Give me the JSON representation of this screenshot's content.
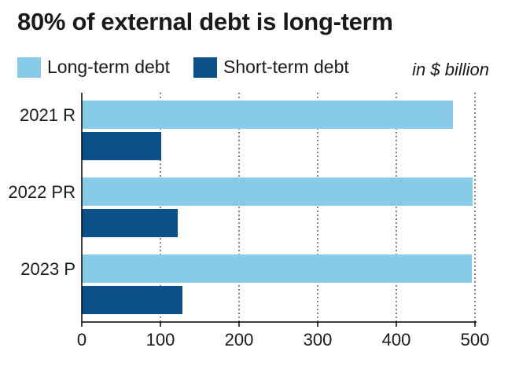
{
  "title": "80% of external debt is long-term",
  "unit_note": "in $ billion",
  "colors": {
    "long_term": "#87CBE8",
    "short_term": "#0B5088",
    "grid": "#333333",
    "axis": "#000000"
  },
  "legend": [
    {
      "label": "Long-term debt",
      "color": "#87CBE8"
    },
    {
      "label": "Short-term debt",
      "color": "#0B5088"
    }
  ],
  "chart_data": {
    "type": "bar",
    "orientation": "horizontal",
    "categories": [
      "2021 R",
      "2022 PR",
      "2023 P"
    ],
    "series": [
      {
        "name": "Long-term debt",
        "values": [
          472,
          497,
          496
        ]
      },
      {
        "name": "Short-term debt",
        "values": [
          101,
          122,
          128
        ]
      }
    ],
    "xlim": [
      0,
      500
    ],
    "xticks": [
      0,
      100,
      200,
      300,
      400,
      500
    ],
    "grid": "vertical dotted",
    "legend_position": "top-left"
  }
}
